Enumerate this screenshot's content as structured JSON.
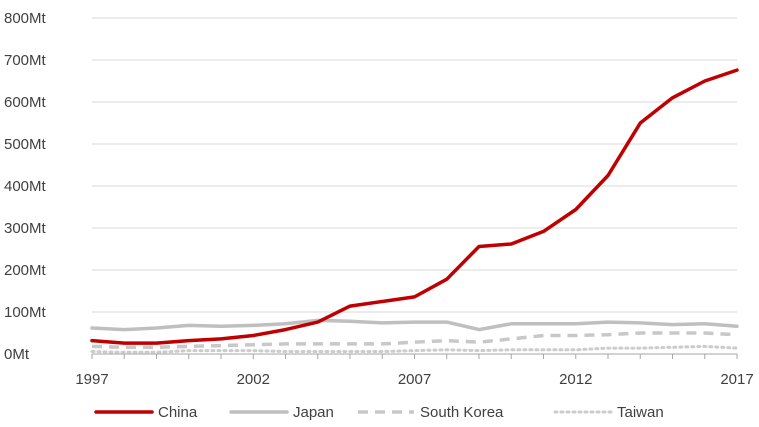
{
  "chart_data": {
    "type": "line",
    "title": "",
    "xlabel": "",
    "ylabel": "",
    "x": [
      1997,
      1998,
      1999,
      2000,
      2001,
      2002,
      2003,
      2004,
      2005,
      2006,
      2007,
      2008,
      2009,
      2010,
      2011,
      2012,
      2013,
      2014,
      2015,
      2016,
      2017
    ],
    "xticks": [
      "1997",
      "2002",
      "2007",
      "2012",
      "2017"
    ],
    "yticks": [
      "0Mt",
      "100Mt",
      "200Mt",
      "300Mt",
      "400Mt",
      "500Mt",
      "600Mt",
      "700Mt",
      "800Mt"
    ],
    "ylim": [
      0,
      800
    ],
    "grid": true,
    "legend_position": "bottom",
    "series": [
      {
        "name": "China",
        "color": "#c00000",
        "style": "solid",
        "values": [
          32,
          26,
          26,
          32,
          36,
          44,
          58,
          76,
          114,
          125,
          136,
          178,
          256,
          262,
          292,
          344,
          425,
          550,
          610,
          650,
          676
        ]
      },
      {
        "name": "Japan",
        "color": "#bfbfbf",
        "style": "solid",
        "values": [
          62,
          58,
          62,
          68,
          66,
          68,
          72,
          80,
          78,
          74,
          76,
          76,
          58,
          72,
          72,
          72,
          76,
          74,
          70,
          72,
          66
        ]
      },
      {
        "name": "South Korea",
        "color": "#c8c8c8",
        "style": "dashed",
        "values": [
          18,
          16,
          16,
          18,
          20,
          22,
          24,
          24,
          24,
          24,
          28,
          32,
          28,
          36,
          44,
          44,
          46,
          50,
          50,
          50,
          46
        ]
      },
      {
        "name": "Taiwan",
        "color": "#cccccc",
        "style": "dotted",
        "values": [
          6,
          4,
          4,
          8,
          8,
          8,
          6,
          6,
          6,
          6,
          8,
          10,
          8,
          10,
          10,
          10,
          14,
          14,
          16,
          18,
          14
        ]
      }
    ]
  }
}
